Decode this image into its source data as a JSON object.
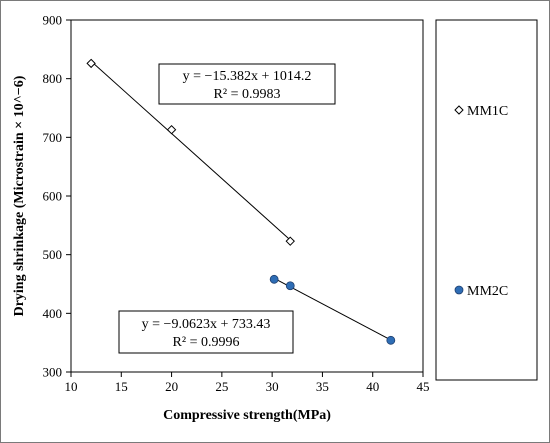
{
  "chart_data": {
    "type": "scatter",
    "xlabel": "Compressive strength(MPa)",
    "ylabel": "Drying shrinkage (Microstrain × 10^−6)",
    "xlim": [
      10,
      45
    ],
    "ylim": [
      300,
      900
    ],
    "xticks": [
      10,
      15,
      20,
      25,
      30,
      35,
      40,
      45
    ],
    "yticks": [
      300,
      400,
      500,
      600,
      700,
      800,
      900
    ],
    "grid": false,
    "legend_position": "right",
    "series": [
      {
        "name": "MM1C",
        "marker": "diamond-open",
        "color": "#000000",
        "points": [
          [
            12,
            826
          ],
          [
            20,
            713
          ],
          [
            31.8,
            523
          ]
        ],
        "trendline": {
          "x_range": [
            12,
            31.8
          ],
          "slope": -15.382,
          "intercept": 1014.2,
          "equation": "y = −15.382x + 1014.2",
          "r2": "R² = 0.9983"
        }
      },
      {
        "name": "MM2C",
        "marker": "circle-filled",
        "color": "#2e6db5",
        "points": [
          [
            30.2,
            458
          ],
          [
            31.8,
            447
          ],
          [
            41.8,
            354
          ]
        ],
        "trendline": {
          "x_range": [
            30.2,
            41.8
          ],
          "slope": -9.0623,
          "intercept": 733.43,
          "equation": "y = −9.0623x + 733.43",
          "r2": "R² = 0.9996"
        }
      }
    ]
  }
}
